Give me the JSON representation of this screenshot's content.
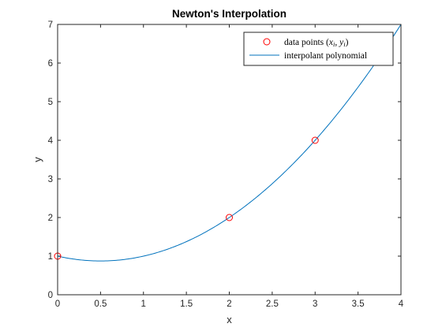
{
  "chart_data": {
    "type": "line",
    "title": "Newton's Interpolation",
    "xlabel": "x",
    "ylabel": "y",
    "xlim": [
      0,
      4
    ],
    "ylim": [
      0,
      7
    ],
    "xticks": [
      0,
      0.5,
      1,
      1.5,
      2,
      2.5,
      3,
      3.5,
      4
    ],
    "yticks": [
      0,
      1,
      2,
      3,
      4,
      5,
      6,
      7
    ],
    "xtick_labels": [
      "0",
      "0.5",
      "1",
      "1.5",
      "2",
      "2.5",
      "3",
      "3.5",
      "4"
    ],
    "ytick_labels": [
      "0",
      "1",
      "2",
      "3",
      "4",
      "5",
      "6",
      "7"
    ],
    "grid": false,
    "legend_position": "top-right",
    "series": [
      {
        "name": "data points (x_i, y_i)",
        "name_prefix": "data points (",
        "name_x": "x",
        "name_i1": "i",
        "name_sep": ", ",
        "name_y": "y",
        "name_i2": "i",
        "name_suffix": ")",
        "kind": "scatter",
        "marker": "circle",
        "color": "#ff0000",
        "x": [
          0,
          2,
          3
        ],
        "y": [
          1,
          2,
          4
        ]
      },
      {
        "name": "interpolant polynomial",
        "kind": "line",
        "color": "#0072bd",
        "polynomial": "y = 1 - 0.5x + 0.5x^2",
        "coefficients": [
          1,
          -0.5,
          0.5
        ],
        "x_range": [
          0,
          4
        ]
      }
    ]
  }
}
